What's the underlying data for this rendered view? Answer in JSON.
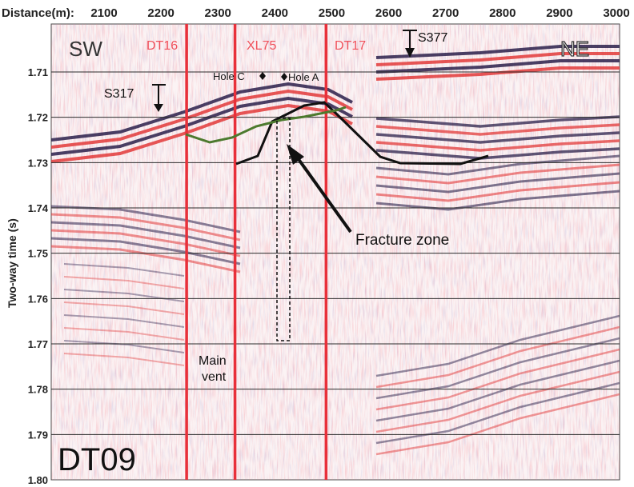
{
  "x_axis": {
    "label": "Distance(m):",
    "ticks": [
      "2100",
      "2200",
      "2300",
      "2400",
      "2500",
      "2600",
      "2700",
      "2800",
      "2900",
      "3000"
    ]
  },
  "y_axis": {
    "label": "Two-way time (s)",
    "ticks": [
      "1.71",
      "1.72",
      "1.73",
      "1.74",
      "1.75",
      "1.76",
      "1.77",
      "1.78",
      "1.79",
      "1.80"
    ]
  },
  "panel_label": "DT09",
  "direction_left": "SW",
  "direction_right": "NE",
  "line_labels": [
    {
      "text": "DT16",
      "distance_m": 2245
    },
    {
      "text": "XL75",
      "distance_m": 2330
    },
    {
      "text": "DT17",
      "distance_m": 2490
    }
  ],
  "markers": [
    {
      "text": "S317",
      "distance_m": 2235
    },
    {
      "text": "S377",
      "distance_m": 2630
    }
  ],
  "holes": [
    {
      "text": "Hole C",
      "distance_m": 2375
    },
    {
      "text": "Hole A",
      "distance_m": 2405
    }
  ],
  "annotations": {
    "main_vent_line1": "Main",
    "main_vent_line2": "vent",
    "fracture_zone": "Fracture zone"
  },
  "colors": {
    "red_line": "#e8303a",
    "red_label": "#f0505a",
    "trough": "#2a1f4a",
    "peak": "#e23a3a",
    "green": "#4d7a2e",
    "grid": "#2b2b2b"
  }
}
